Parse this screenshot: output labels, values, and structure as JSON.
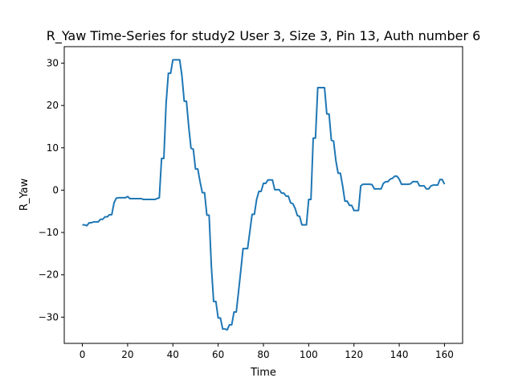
{
  "chart_data": {
    "type": "line",
    "title": "R_Yaw Time-Series for study2 User 3, Size 3, Pin 13, Auth number 6",
    "xlabel": "Time",
    "ylabel": "R_Yaw",
    "xlim": [
      -8,
      168
    ],
    "ylim": [
      -36.2,
      33.9
    ],
    "xticks": [
      0,
      20,
      40,
      60,
      80,
      100,
      120,
      140,
      160
    ],
    "yticks": [
      -30,
      -20,
      -10,
      0,
      10,
      20,
      30
    ],
    "grid": false,
    "line_color": "#1f77b4",
    "series": [
      {
        "x": [
          0,
          1,
          2,
          3,
          4,
          5,
          6,
          7,
          8,
          9,
          10,
          11,
          12,
          13,
          14,
          15,
          16,
          17,
          18,
          19,
          20,
          21,
          22,
          23,
          24,
          25,
          26,
          27,
          28,
          29,
          30,
          31,
          32,
          33,
          34,
          35,
          36,
          37,
          38,
          39,
          40,
          41,
          42,
          43,
          44,
          45,
          46,
          47,
          48,
          49,
          50,
          51,
          52,
          53,
          54,
          55,
          56,
          57,
          58,
          59,
          60,
          61,
          62,
          63,
          64,
          65,
          66,
          67,
          68,
          69,
          70,
          71,
          72,
          73,
          74,
          75,
          76,
          77,
          78,
          79,
          80,
          81,
          82,
          83,
          84,
          85,
          86,
          87,
          88,
          89,
          90,
          91,
          92,
          93,
          94,
          95,
          96,
          97,
          98,
          99,
          100,
          101,
          102,
          103,
          104,
          105,
          106,
          107,
          108,
          109,
          110,
          111,
          112,
          113,
          114,
          115,
          116,
          117,
          118,
          119,
          120,
          121,
          122,
          123,
          124,
          125,
          126,
          127,
          128,
          129,
          130,
          131,
          132,
          133,
          134,
          135,
          136,
          137,
          138,
          139,
          140,
          141,
          142,
          143,
          144,
          145,
          146,
          147,
          148,
          149,
          150,
          151,
          152,
          153,
          154,
          155,
          156,
          157,
          158,
          159,
          160
        ],
        "y": [
          -8.2,
          -8.2,
          -8.4,
          -7.7,
          -7.7,
          -7.5,
          -7.5,
          -7.5,
          -6.9,
          -6.9,
          -6.3,
          -6.3,
          -5.8,
          -5.8,
          -3.0,
          -1.9,
          -1.8,
          -1.8,
          -1.8,
          -1.8,
          -1.5,
          -2.0,
          -2.0,
          -2.0,
          -2.0,
          -2.0,
          -2.0,
          -2.2,
          -2.2,
          -2.2,
          -2.2,
          -2.2,
          -2.2,
          -2.0,
          -1.8,
          7.5,
          7.5,
          20.5,
          27.6,
          27.6,
          30.8,
          30.8,
          30.8,
          30.8,
          27.0,
          21.0,
          21.0,
          15.0,
          9.9,
          9.7,
          5.0,
          5.0,
          2.0,
          -0.6,
          -0.6,
          -5.9,
          -5.9,
          -18.0,
          -26.3,
          -26.3,
          -30.2,
          -30.2,
          -32.8,
          -32.8,
          -33.0,
          -31.8,
          -31.8,
          -28.8,
          -28.8,
          -24.0,
          -19.0,
          -13.8,
          -13.8,
          -13.8,
          -9.8,
          -5.7,
          -5.7,
          -2.2,
          -0.3,
          -0.3,
          1.6,
          1.6,
          2.4,
          2.4,
          2.4,
          0.1,
          0.1,
          0.1,
          -0.7,
          -0.7,
          -1.4,
          -1.4,
          -3.0,
          -3.2,
          -4.3,
          -6.0,
          -6.2,
          -8.2,
          -8.2,
          -8.2,
          -2.2,
          -2.2,
          12.3,
          12.3,
          24.2,
          24.2,
          24.2,
          24.2,
          18.0,
          18.0,
          11.8,
          11.6,
          7.0,
          4.0,
          4.0,
          1.0,
          -2.6,
          -2.6,
          -3.6,
          -3.6,
          -4.8,
          -4.8,
          -4.8,
          1.0,
          1.4,
          1.4,
          1.4,
          1.4,
          1.3,
          0.3,
          0.3,
          0.3,
          0.3,
          1.6,
          2.0,
          2.0,
          2.6,
          2.8,
          3.3,
          3.3,
          2.6,
          1.4,
          1.4,
          1.4,
          1.4,
          1.5,
          2.0,
          2.0,
          2.0,
          1.0,
          1.0,
          1.0,
          0.3,
          0.3,
          1.0,
          1.2,
          1.2,
          1.2,
          2.5,
          2.5,
          1.4
        ]
      }
    ]
  }
}
